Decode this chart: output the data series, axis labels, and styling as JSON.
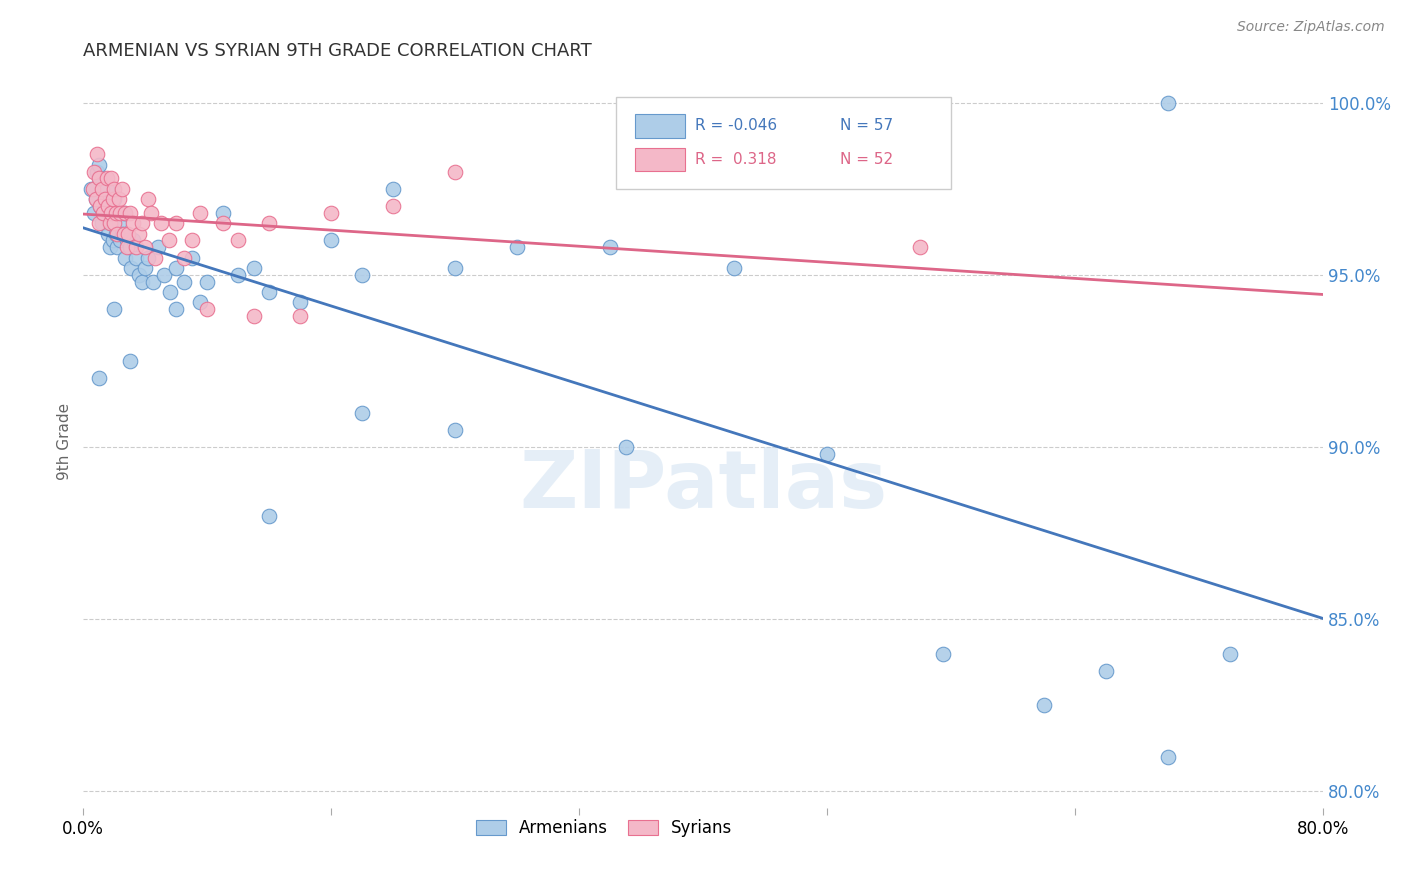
{
  "title": "ARMENIAN VS SYRIAN 9TH GRADE CORRELATION CHART",
  "source": "Source: ZipAtlas.com",
  "ylabel": "9th Grade",
  "xmin": 0.0,
  "xmax": 0.8,
  "ymin": 0.795,
  "ymax": 1.008,
  "yticks": [
    0.8,
    0.85,
    0.9,
    0.95,
    1.0
  ],
  "ytick_labels": [
    "80.0%",
    "85.0%",
    "90.0%",
    "95.0%",
    "100.0%"
  ],
  "xticks": [
    0.0,
    0.16,
    0.32,
    0.48,
    0.64,
    0.8
  ],
  "legend_armenians_r": "-0.046",
  "legend_armenians_n": "57",
  "legend_syrians_r": "0.318",
  "legend_syrians_n": "52",
  "armenian_color": "#aecde8",
  "syrian_color": "#f4b8c8",
  "armenian_edge_color": "#6699cc",
  "syrian_edge_color": "#e87090",
  "armenian_line_color": "#4477bb",
  "syrian_line_color": "#dd6688",
  "watermark": "ZIPatlas",
  "armenian_x": [
    0.005,
    0.007,
    0.008,
    0.009,
    0.01,
    0.01,
    0.011,
    0.012,
    0.013,
    0.014,
    0.015,
    0.016,
    0.016,
    0.017,
    0.018,
    0.018,
    0.019,
    0.02,
    0.02,
    0.021,
    0.022,
    0.023,
    0.024,
    0.025,
    0.026,
    0.027,
    0.028,
    0.03,
    0.031,
    0.032,
    0.034,
    0.036,
    0.038,
    0.04,
    0.042,
    0.045,
    0.048,
    0.052,
    0.056,
    0.06,
    0.065,
    0.07,
    0.075,
    0.08,
    0.09,
    0.1,
    0.11,
    0.12,
    0.14,
    0.16,
    0.18,
    0.2,
    0.24,
    0.28,
    0.34,
    0.42,
    0.7
  ],
  "armenian_y": [
    0.975,
    0.968,
    0.972,
    0.98,
    0.982,
    0.978,
    0.97,
    0.965,
    0.968,
    0.972,
    0.975,
    0.968,
    0.962,
    0.958,
    0.97,
    0.965,
    0.96,
    0.972,
    0.968,
    0.962,
    0.958,
    0.965,
    0.96,
    0.962,
    0.968,
    0.955,
    0.96,
    0.958,
    0.952,
    0.96,
    0.955,
    0.95,
    0.948,
    0.952,
    0.955,
    0.948,
    0.958,
    0.95,
    0.945,
    0.952,
    0.948,
    0.955,
    0.942,
    0.948,
    0.968,
    0.95,
    0.952,
    0.945,
    0.942,
    0.96,
    0.95,
    0.975,
    0.952,
    0.958,
    0.958,
    0.952,
    1.0
  ],
  "armenian_x2": [
    0.01,
    0.02,
    0.03,
    0.06,
    0.12,
    0.18,
    0.24,
    0.35,
    0.48,
    0.555,
    0.62,
    0.66,
    0.7,
    0.74
  ],
  "armenian_y2": [
    0.92,
    0.94,
    0.925,
    0.94,
    0.88,
    0.91,
    0.905,
    0.9,
    0.898,
    0.84,
    0.825,
    0.835,
    0.81,
    0.84
  ],
  "syrian_x": [
    0.006,
    0.007,
    0.008,
    0.009,
    0.01,
    0.01,
    0.011,
    0.012,
    0.013,
    0.014,
    0.015,
    0.016,
    0.017,
    0.018,
    0.018,
    0.019,
    0.02,
    0.02,
    0.021,
    0.022,
    0.023,
    0.024,
    0.025,
    0.026,
    0.027,
    0.028,
    0.029,
    0.03,
    0.032,
    0.034,
    0.036,
    0.038,
    0.04,
    0.042,
    0.044,
    0.046,
    0.05,
    0.055,
    0.06,
    0.065,
    0.07,
    0.075,
    0.08,
    0.09,
    0.1,
    0.11,
    0.12,
    0.14,
    0.16,
    0.2,
    0.24,
    0.54
  ],
  "syrian_y": [
    0.975,
    0.98,
    0.972,
    0.985,
    0.978,
    0.965,
    0.97,
    0.975,
    0.968,
    0.972,
    0.978,
    0.97,
    0.965,
    0.978,
    0.968,
    0.972,
    0.975,
    0.965,
    0.968,
    0.962,
    0.972,
    0.968,
    0.975,
    0.962,
    0.968,
    0.958,
    0.962,
    0.968,
    0.965,
    0.958,
    0.962,
    0.965,
    0.958,
    0.972,
    0.968,
    0.955,
    0.965,
    0.96,
    0.965,
    0.955,
    0.96,
    0.968,
    0.94,
    0.965,
    0.96,
    0.938,
    0.965,
    0.938,
    0.968,
    0.97,
    0.98,
    0.958
  ]
}
